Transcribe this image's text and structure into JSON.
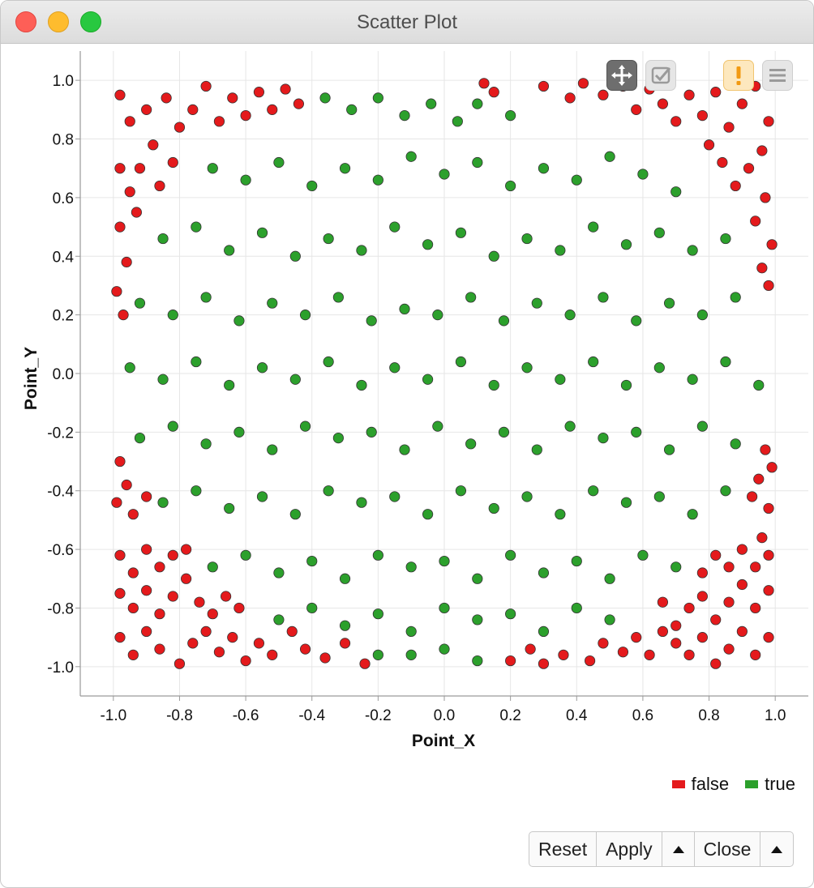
{
  "window": {
    "title": "Scatter Plot"
  },
  "toolbar": {
    "pan_icon": "move-arrows-icon",
    "select_icon": "checkbox-select-icon",
    "warning_icon": "exclamation-icon",
    "menu_icon": "hamburger-menu-icon"
  },
  "legend": {
    "items": [
      {
        "label": "false",
        "color": "#e41a1c"
      },
      {
        "label": "true",
        "color": "#2ca02c"
      }
    ]
  },
  "buttons": {
    "reset": "Reset",
    "apply": "Apply",
    "close": "Close"
  },
  "chart_data": {
    "type": "scatter",
    "title": "",
    "xlabel": "Point_X",
    "ylabel": "Point_Y",
    "xlim": [
      -1.1,
      1.1
    ],
    "ylim": [
      -1.1,
      1.1
    ],
    "xticks": [
      "-1.0",
      "-0.8",
      "-0.6",
      "-0.4",
      "-0.2",
      "0.0",
      "0.2",
      "0.4",
      "0.6",
      "0.8",
      "1.0"
    ],
    "yticks": [
      "1.0",
      "0.8",
      "0.6",
      "0.4",
      "0.2",
      "0.0",
      "-0.2",
      "-0.4",
      "-0.6",
      "-0.8",
      "-1.0"
    ],
    "grid": true,
    "legend_position": "bottom-right",
    "series": [
      {
        "name": "false",
        "color": "#e41a1c",
        "points": [
          [
            -0.98,
            0.95
          ],
          [
            -0.95,
            0.86
          ],
          [
            -0.9,
            0.9
          ],
          [
            -0.88,
            0.78
          ],
          [
            -0.84,
            0.94
          ],
          [
            -0.8,
            0.84
          ],
          [
            -0.76,
            0.9
          ],
          [
            -0.72,
            0.98
          ],
          [
            -0.68,
            0.86
          ],
          [
            -0.64,
            0.94
          ],
          [
            -0.6,
            0.88
          ],
          [
            -0.56,
            0.96
          ],
          [
            -0.52,
            0.9
          ],
          [
            -0.48,
            0.97
          ],
          [
            -0.44,
            0.92
          ],
          [
            -0.98,
            0.7
          ],
          [
            -0.95,
            0.62
          ],
          [
            -0.92,
            0.7
          ],
          [
            -0.86,
            0.64
          ],
          [
            -0.82,
            0.72
          ],
          [
            -0.98,
            0.5
          ],
          [
            -0.93,
            0.55
          ],
          [
            -0.96,
            0.38
          ],
          [
            -0.99,
            0.28
          ],
          [
            -0.97,
            0.2
          ],
          [
            -0.98,
            -0.3
          ],
          [
            -0.96,
            -0.38
          ],
          [
            -0.99,
            -0.44
          ],
          [
            -0.94,
            -0.48
          ],
          [
            -0.9,
            -0.42
          ],
          [
            -0.98,
            -0.62
          ],
          [
            -0.94,
            -0.68
          ],
          [
            -0.9,
            -0.6
          ],
          [
            -0.86,
            -0.66
          ],
          [
            -0.82,
            -0.62
          ],
          [
            -0.78,
            -0.6
          ],
          [
            -0.98,
            -0.75
          ],
          [
            -0.94,
            -0.8
          ],
          [
            -0.9,
            -0.74
          ],
          [
            -0.86,
            -0.82
          ],
          [
            -0.82,
            -0.76
          ],
          [
            -0.78,
            -0.7
          ],
          [
            -0.74,
            -0.78
          ],
          [
            -0.7,
            -0.82
          ],
          [
            -0.66,
            -0.76
          ],
          [
            -0.62,
            -0.8
          ],
          [
            -0.98,
            -0.9
          ],
          [
            -0.94,
            -0.96
          ],
          [
            -0.9,
            -0.88
          ],
          [
            -0.86,
            -0.94
          ],
          [
            -0.8,
            -0.99
          ],
          [
            -0.76,
            -0.92
          ],
          [
            -0.72,
            -0.88
          ],
          [
            -0.68,
            -0.95
          ],
          [
            -0.64,
            -0.9
          ],
          [
            -0.6,
            -0.98
          ],
          [
            -0.56,
            -0.92
          ],
          [
            -0.52,
            -0.96
          ],
          [
            -0.46,
            -0.88
          ],
          [
            -0.42,
            -0.94
          ],
          [
            -0.36,
            -0.97
          ],
          [
            -0.3,
            -0.92
          ],
          [
            -0.24,
            -0.99
          ],
          [
            0.12,
            0.99
          ],
          [
            0.15,
            0.96
          ],
          [
            0.3,
            0.98
          ],
          [
            0.38,
            0.94
          ],
          [
            0.42,
            0.99
          ],
          [
            0.48,
            0.95
          ],
          [
            0.54,
            0.98
          ],
          [
            0.58,
            0.9
          ],
          [
            0.62,
            0.97
          ],
          [
            0.66,
            0.92
          ],
          [
            0.7,
            0.86
          ],
          [
            0.74,
            0.95
          ],
          [
            0.78,
            0.88
          ],
          [
            0.82,
            0.96
          ],
          [
            0.86,
            0.84
          ],
          [
            0.9,
            0.92
          ],
          [
            0.94,
            0.98
          ],
          [
            0.98,
            0.86
          ],
          [
            0.96,
            0.76
          ],
          [
            0.92,
            0.7
          ],
          [
            0.88,
            0.64
          ],
          [
            0.84,
            0.72
          ],
          [
            0.8,
            0.78
          ],
          [
            0.97,
            0.6
          ],
          [
            0.94,
            0.52
          ],
          [
            0.99,
            0.44
          ],
          [
            0.96,
            0.36
          ],
          [
            0.98,
            0.3
          ],
          [
            0.97,
            -0.26
          ],
          [
            0.99,
            -0.32
          ],
          [
            0.95,
            -0.36
          ],
          [
            0.93,
            -0.42
          ],
          [
            0.98,
            -0.46
          ],
          [
            0.96,
            -0.56
          ],
          [
            0.98,
            -0.62
          ],
          [
            0.94,
            -0.66
          ],
          [
            0.9,
            -0.6
          ],
          [
            0.86,
            -0.66
          ],
          [
            0.82,
            -0.62
          ],
          [
            0.78,
            -0.68
          ],
          [
            0.98,
            -0.74
          ],
          [
            0.94,
            -0.8
          ],
          [
            0.9,
            -0.72
          ],
          [
            0.86,
            -0.78
          ],
          [
            0.82,
            -0.84
          ],
          [
            0.78,
            -0.76
          ],
          [
            0.74,
            -0.8
          ],
          [
            0.7,
            -0.86
          ],
          [
            0.66,
            -0.78
          ],
          [
            0.98,
            -0.9
          ],
          [
            0.94,
            -0.96
          ],
          [
            0.9,
            -0.88
          ],
          [
            0.86,
            -0.94
          ],
          [
            0.82,
            -0.99
          ],
          [
            0.78,
            -0.9
          ],
          [
            0.74,
            -0.96
          ],
          [
            0.7,
            -0.92
          ],
          [
            0.66,
            -0.88
          ],
          [
            0.62,
            -0.96
          ],
          [
            0.58,
            -0.9
          ],
          [
            0.54,
            -0.95
          ],
          [
            0.48,
            -0.92
          ],
          [
            0.44,
            -0.98
          ],
          [
            0.36,
            -0.96
          ],
          [
            0.3,
            -0.99
          ],
          [
            0.26,
            -0.94
          ],
          [
            0.2,
            -0.98
          ]
        ]
      },
      {
        "name": "true",
        "color": "#2ca02c",
        "points": [
          [
            -0.36,
            0.94
          ],
          [
            -0.28,
            0.9
          ],
          [
            -0.2,
            0.94
          ],
          [
            -0.12,
            0.88
          ],
          [
            -0.04,
            0.92
          ],
          [
            0.04,
            0.86
          ],
          [
            0.1,
            0.92
          ],
          [
            0.2,
            0.88
          ],
          [
            -0.7,
            0.7
          ],
          [
            -0.6,
            0.66
          ],
          [
            -0.5,
            0.72
          ],
          [
            -0.4,
            0.64
          ],
          [
            -0.3,
            0.7
          ],
          [
            -0.2,
            0.66
          ],
          [
            -0.1,
            0.74
          ],
          [
            0.0,
            0.68
          ],
          [
            0.1,
            0.72
          ],
          [
            0.2,
            0.64
          ],
          [
            0.3,
            0.7
          ],
          [
            0.4,
            0.66
          ],
          [
            0.5,
            0.74
          ],
          [
            0.6,
            0.68
          ],
          [
            0.7,
            0.62
          ],
          [
            -0.85,
            0.46
          ],
          [
            -0.75,
            0.5
          ],
          [
            -0.65,
            0.42
          ],
          [
            -0.55,
            0.48
          ],
          [
            -0.45,
            0.4
          ],
          [
            -0.35,
            0.46
          ],
          [
            -0.25,
            0.42
          ],
          [
            -0.15,
            0.5
          ],
          [
            -0.05,
            0.44
          ],
          [
            0.05,
            0.48
          ],
          [
            0.15,
            0.4
          ],
          [
            0.25,
            0.46
          ],
          [
            0.35,
            0.42
          ],
          [
            0.45,
            0.5
          ],
          [
            0.55,
            0.44
          ],
          [
            0.65,
            0.48
          ],
          [
            0.75,
            0.42
          ],
          [
            0.85,
            0.46
          ],
          [
            -0.92,
            0.24
          ],
          [
            -0.82,
            0.2
          ],
          [
            -0.72,
            0.26
          ],
          [
            -0.62,
            0.18
          ],
          [
            -0.52,
            0.24
          ],
          [
            -0.42,
            0.2
          ],
          [
            -0.32,
            0.26
          ],
          [
            -0.22,
            0.18
          ],
          [
            -0.12,
            0.22
          ],
          [
            -0.02,
            0.2
          ],
          [
            0.08,
            0.26
          ],
          [
            0.18,
            0.18
          ],
          [
            0.28,
            0.24
          ],
          [
            0.38,
            0.2
          ],
          [
            0.48,
            0.26
          ],
          [
            0.58,
            0.18
          ],
          [
            0.68,
            0.24
          ],
          [
            0.78,
            0.2
          ],
          [
            0.88,
            0.26
          ],
          [
            -0.95,
            0.02
          ],
          [
            -0.85,
            -0.02
          ],
          [
            -0.75,
            0.04
          ],
          [
            -0.65,
            -0.04
          ],
          [
            -0.55,
            0.02
          ],
          [
            -0.45,
            -0.02
          ],
          [
            -0.35,
            0.04
          ],
          [
            -0.25,
            -0.04
          ],
          [
            -0.15,
            0.02
          ],
          [
            -0.05,
            -0.02
          ],
          [
            0.05,
            0.04
          ],
          [
            0.15,
            -0.04
          ],
          [
            0.25,
            0.02
          ],
          [
            0.35,
            -0.02
          ],
          [
            0.45,
            0.04
          ],
          [
            0.55,
            -0.04
          ],
          [
            0.65,
            0.02
          ],
          [
            0.75,
            -0.02
          ],
          [
            0.85,
            0.04
          ],
          [
            0.95,
            -0.04
          ],
          [
            -0.92,
            -0.22
          ],
          [
            -0.82,
            -0.18
          ],
          [
            -0.72,
            -0.24
          ],
          [
            -0.62,
            -0.2
          ],
          [
            -0.52,
            -0.26
          ],
          [
            -0.42,
            -0.18
          ],
          [
            -0.32,
            -0.22
          ],
          [
            -0.22,
            -0.2
          ],
          [
            -0.12,
            -0.26
          ],
          [
            -0.02,
            -0.18
          ],
          [
            0.08,
            -0.24
          ],
          [
            0.18,
            -0.2
          ],
          [
            0.28,
            -0.26
          ],
          [
            0.38,
            -0.18
          ],
          [
            0.48,
            -0.22
          ],
          [
            0.58,
            -0.2
          ],
          [
            0.68,
            -0.26
          ],
          [
            0.78,
            -0.18
          ],
          [
            0.88,
            -0.24
          ],
          [
            -0.85,
            -0.44
          ],
          [
            -0.75,
            -0.4
          ],
          [
            -0.65,
            -0.46
          ],
          [
            -0.55,
            -0.42
          ],
          [
            -0.45,
            -0.48
          ],
          [
            -0.35,
            -0.4
          ],
          [
            -0.25,
            -0.44
          ],
          [
            -0.15,
            -0.42
          ],
          [
            -0.05,
            -0.48
          ],
          [
            0.05,
            -0.4
          ],
          [
            0.15,
            -0.46
          ],
          [
            0.25,
            -0.42
          ],
          [
            0.35,
            -0.48
          ],
          [
            0.45,
            -0.4
          ],
          [
            0.55,
            -0.44
          ],
          [
            0.65,
            -0.42
          ],
          [
            0.75,
            -0.48
          ],
          [
            0.85,
            -0.4
          ],
          [
            -0.7,
            -0.66
          ],
          [
            -0.6,
            -0.62
          ],
          [
            -0.5,
            -0.68
          ],
          [
            -0.4,
            -0.64
          ],
          [
            -0.3,
            -0.7
          ],
          [
            -0.2,
            -0.62
          ],
          [
            -0.1,
            -0.66
          ],
          [
            0.0,
            -0.64
          ],
          [
            0.1,
            -0.7
          ],
          [
            0.2,
            -0.62
          ],
          [
            0.3,
            -0.68
          ],
          [
            0.4,
            -0.64
          ],
          [
            0.5,
            -0.7
          ],
          [
            0.6,
            -0.62
          ],
          [
            0.7,
            -0.66
          ],
          [
            -0.5,
            -0.84
          ],
          [
            -0.4,
            -0.8
          ],
          [
            -0.3,
            -0.86
          ],
          [
            -0.2,
            -0.82
          ],
          [
            -0.1,
            -0.88
          ],
          [
            0.0,
            -0.8
          ],
          [
            0.1,
            -0.84
          ],
          [
            0.2,
            -0.82
          ],
          [
            0.3,
            -0.88
          ],
          [
            0.4,
            -0.8
          ],
          [
            0.5,
            -0.84
          ],
          [
            -0.1,
            -0.96
          ],
          [
            0.0,
            -0.94
          ],
          [
            0.1,
            -0.98
          ],
          [
            -0.2,
            -0.96
          ]
        ]
      }
    ]
  }
}
